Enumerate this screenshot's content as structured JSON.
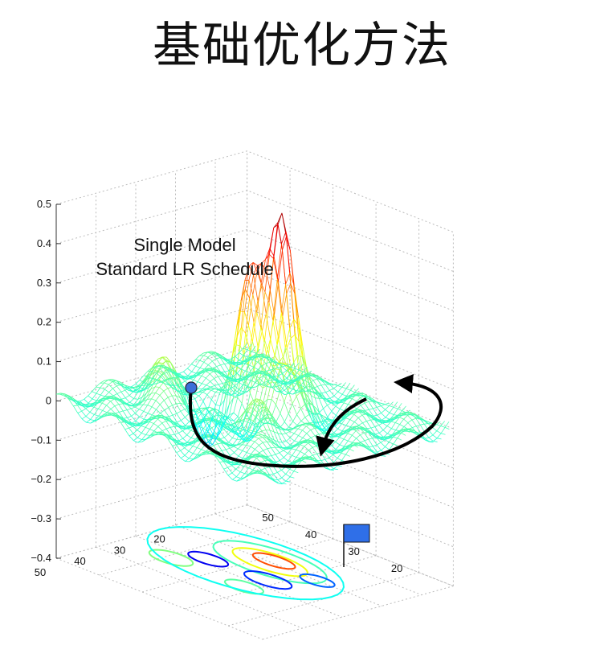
{
  "slide": {
    "title": "基础优化方法"
  },
  "chart_data": {
    "type": "surface3d",
    "title": "",
    "annotation": [
      "Single Model",
      "Standard LR Schedule"
    ],
    "z_axis": {
      "min": -0.4,
      "max": 0.5,
      "ticks": [
        -0.4,
        -0.3,
        -0.2,
        -0.1,
        0,
        0.1,
        0.2,
        0.3,
        0.4,
        0.5
      ],
      "tick_labels": [
        "−0.4",
        "−0.3",
        "−0.2",
        "−0.1",
        "0",
        "0.1",
        "0.2",
        "0.3",
        "0.4",
        "0.5"
      ]
    },
    "x_axis": {
      "ticks": [
        20,
        30,
        40,
        50
      ]
    },
    "y_axis": {
      "ticks": [
        20,
        30,
        40,
        50
      ]
    },
    "grid": true,
    "colormap": "jet",
    "mesh_color_range": [
      -0.4,
      0.5
    ],
    "start_marker": {
      "type": "circle",
      "color": "#3a6fd8"
    },
    "goal_marker": {
      "type": "flag",
      "color": "#2f6fe8"
    }
  }
}
